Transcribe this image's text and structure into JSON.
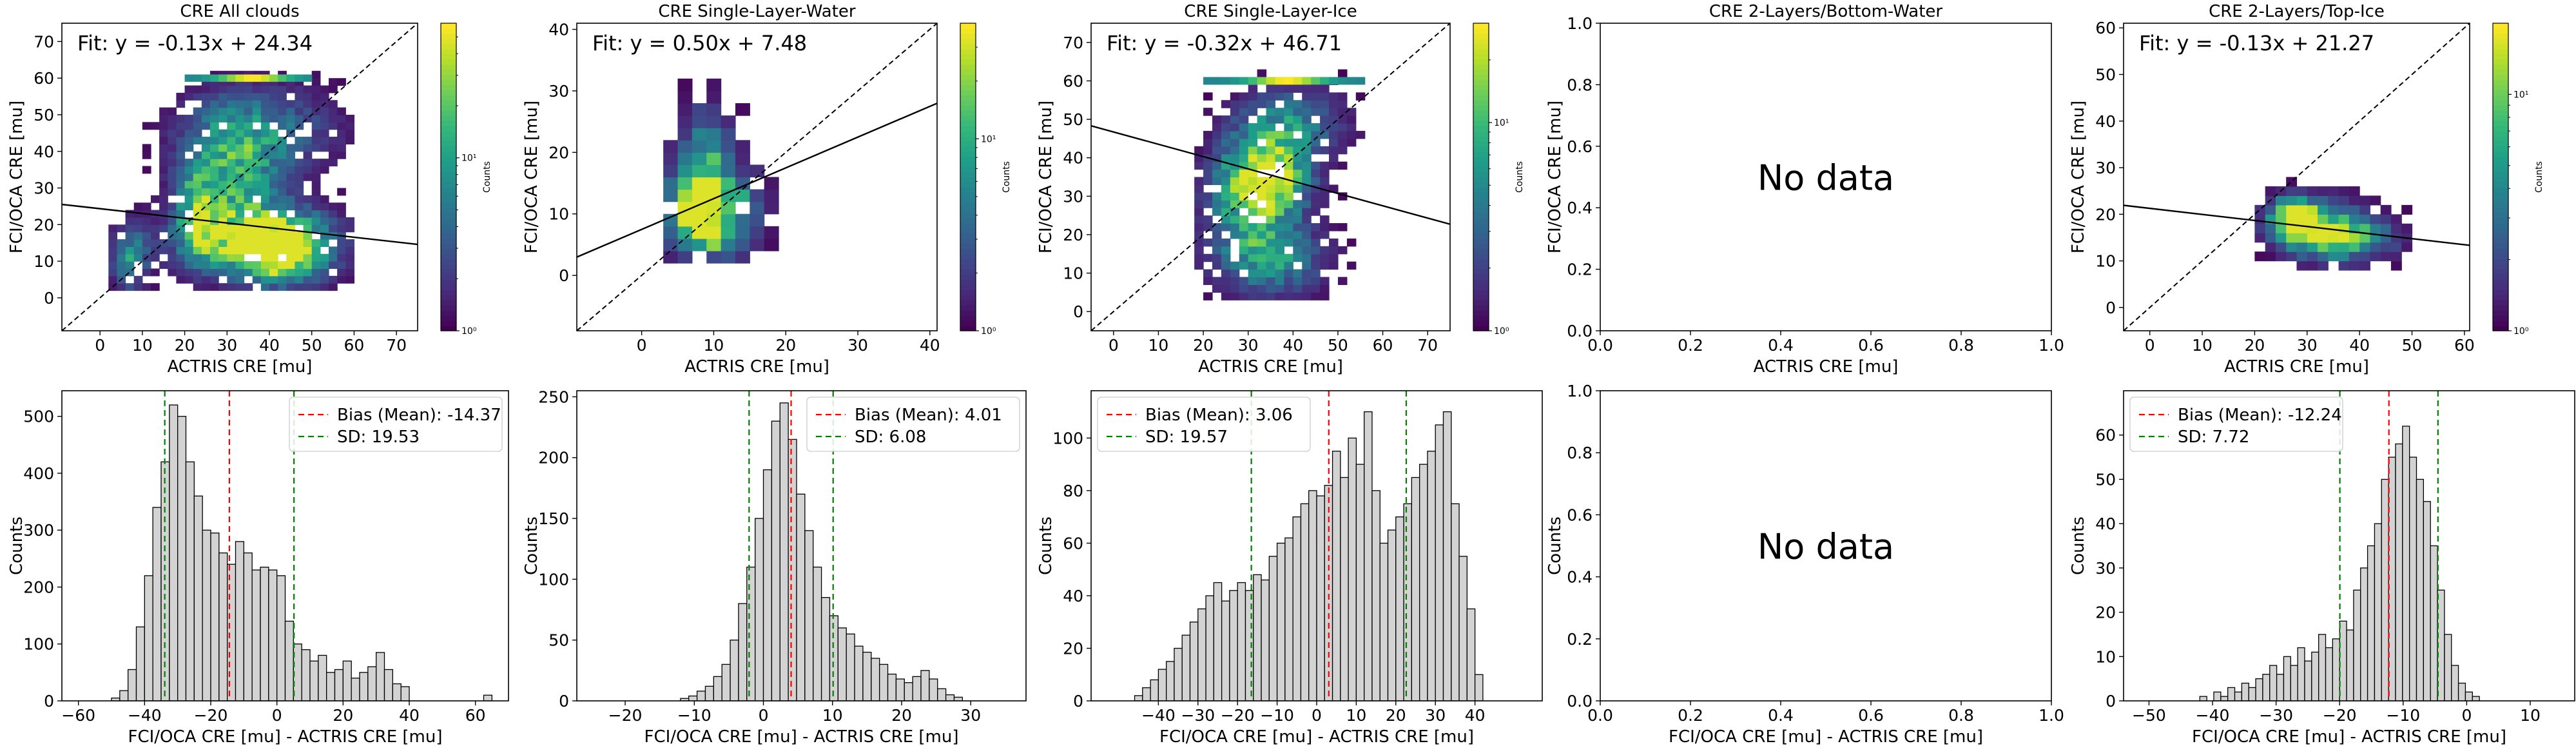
{
  "chart_data": [
    {
      "type": "heatmap",
      "title": "CRE All clouds",
      "xlabel": "ACTRIS CRE [mu]",
      "ylabel": "FCI/OCA CRE [mu]",
      "xlim": [
        -9,
        75
      ],
      "ylim": [
        -9,
        75
      ],
      "xticks": [
        0,
        10,
        20,
        30,
        40,
        50,
        60,
        70
      ],
      "yticks": [
        0,
        10,
        20,
        30,
        40,
        50,
        60,
        70
      ],
      "fit": {
        "label": "Fit: y = -0.13x + 24.34",
        "slope": -0.13,
        "intercept": 24.34
      },
      "identity_line": true,
      "colorbar": {
        "label": "Counts",
        "scale": "log",
        "range": [
          1,
          60
        ],
        "ticks": [
          "10⁰",
          "10¹"
        ]
      },
      "density": {
        "blobs": [
          [
            22,
            22,
            3,
            8,
            0.55
          ],
          [
            30,
            32,
            8,
            12,
            0.6
          ],
          [
            42,
            12,
            7,
            6,
            1.0
          ],
          [
            35,
            15,
            12,
            6,
            0.7
          ],
          [
            6,
            10,
            3,
            6,
            0.5
          ],
          [
            38,
            45,
            12,
            8,
            0.35
          ]
        ],
        "xr": [
          2,
          60
        ],
        "yr": [
          2,
          62
        ],
        "cap": 60,
        "capx": [
          20,
          50
        ],
        "seed": 11
      }
    },
    {
      "type": "heatmap",
      "title": "CRE Single-Layer-Water",
      "xlabel": "ACTRIS CRE [mu]",
      "ylabel": "FCI/OCA CRE [mu]",
      "xlim": [
        -9,
        41
      ],
      "ylim": [
        -9,
        41
      ],
      "xticks": [
        0,
        10,
        20,
        30,
        40
      ],
      "yticks": [
        0,
        10,
        20,
        30,
        40
      ],
      "fit": {
        "label": "Fit: y = 0.50x + 7.48",
        "slope": 0.5,
        "intercept": 7.48
      },
      "identity_line": true,
      "colorbar": {
        "label": "Counts",
        "scale": "log",
        "range": [
          1,
          40
        ],
        "ticks": [
          "10⁰",
          "10¹"
        ]
      },
      "density": {
        "blobs": [
          [
            6,
            10,
            2.5,
            4,
            1.0
          ],
          [
            8,
            17,
            2.5,
            6,
            0.6
          ],
          [
            10,
            6,
            3,
            3,
            0.6
          ],
          [
            12,
            12,
            3,
            3,
            0.4
          ]
        ],
        "xr": [
          3,
          20
        ],
        "yr": [
          2,
          32
        ],
        "seed": 5
      }
    },
    {
      "type": "heatmap",
      "title": "CRE Single-Layer-Ice",
      "xlabel": "ACTRIS CRE [mu]",
      "ylabel": "FCI/OCA CRE [mu]",
      "xlim": [
        -5,
        75
      ],
      "ylim": [
        -5,
        75
      ],
      "xticks": [
        0,
        10,
        20,
        30,
        40,
        50,
        60,
        70
      ],
      "yticks": [
        0,
        10,
        20,
        30,
        40,
        50,
        60,
        70
      ],
      "fit": {
        "label": "Fit: y = -0.32x + 46.71",
        "slope": -0.32,
        "intercept": 46.71
      },
      "identity_line": true,
      "colorbar": {
        "label": "Counts",
        "scale": "log",
        "range": [
          1,
          30
        ],
        "ticks": [
          "10⁰",
          "10¹"
        ]
      },
      "density": {
        "blobs": [
          [
            33,
            35,
            6,
            6,
            1.0
          ],
          [
            30,
            25,
            7,
            10,
            0.6
          ],
          [
            38,
            48,
            8,
            6,
            0.5
          ],
          [
            35,
            12,
            8,
            6,
            0.4
          ]
        ],
        "xr": [
          18,
          65
        ],
        "yr": [
          3,
          62
        ],
        "cap": 60,
        "capx": [
          20,
          55
        ],
        "seed": 23
      }
    },
    {
      "type": "heatmap",
      "title": "CRE 2-Layers/Bottom-Water",
      "xlabel": "ACTRIS CRE [mu]",
      "ylabel": "FCI/OCA CRE [mu]",
      "xlim": [
        0,
        1
      ],
      "ylim": [
        0,
        1
      ],
      "xticks": [
        "0.0",
        "0.2",
        "0.4",
        "0.6",
        "0.8",
        "1.0"
      ],
      "yticks": [
        "0.0",
        "0.2",
        "0.4",
        "0.6",
        "0.8",
        "1.0"
      ],
      "annotation": "No data"
    },
    {
      "type": "heatmap",
      "title": "CRE 2-Layers/Top-Ice",
      "xlabel": "ACTRIS CRE [mu]",
      "ylabel": "FCI/OCA CRE [mu]",
      "xlim": [
        -5,
        61
      ],
      "ylim": [
        -5,
        61
      ],
      "xticks": [
        0,
        10,
        20,
        30,
        40,
        50,
        60
      ],
      "yticks": [
        0,
        10,
        20,
        30,
        40,
        50,
        60
      ],
      "fit": {
        "label": "Fit: y = -0.13x + 21.27",
        "slope": -0.13,
        "intercept": 21.27
      },
      "identity_line": true,
      "colorbar": {
        "label": "Counts",
        "scale": "log",
        "range": [
          1,
          20
        ],
        "ticks": [
          "10⁰",
          "10¹"
        ]
      },
      "density": {
        "blobs": [
          [
            26,
            18,
            3,
            3,
            1.0
          ],
          [
            32,
            16,
            5,
            4,
            0.8
          ],
          [
            38,
            14,
            6,
            3,
            0.5
          ]
        ],
        "xr": [
          18,
          50
        ],
        "yr": [
          8,
          34
        ],
        "seed": 31
      }
    },
    {
      "type": "bar",
      "subtype": "histogram",
      "xlabel": "FCI/OCA CRE [mu] - ACTRIS CRE [mu]",
      "ylabel": "Counts",
      "xlim": [
        -65,
        70
      ],
      "ylim": [
        0,
        545
      ],
      "xticks": [
        -60,
        -40,
        -20,
        0,
        20,
        40,
        60
      ],
      "yticks": [
        0,
        100,
        200,
        300,
        400,
        500
      ],
      "bin_start": -50,
      "bin_width": 2.5,
      "values": [
        5,
        18,
        55,
        130,
        220,
        340,
        420,
        520,
        500,
        420,
        360,
        300,
        295,
        260,
        240,
        280,
        260,
        230,
        235,
        230,
        220,
        140,
        100,
        90,
        70,
        80,
        50,
        55,
        70,
        40,
        50,
        60,
        85,
        55,
        30,
        25,
        0,
        0,
        0,
        0,
        0,
        0,
        0,
        0,
        0,
        10,
        0,
        0
      ],
      "bias": {
        "label": "Bias (Mean): -14.37",
        "value": -14.37
      },
      "sd": {
        "label": "SD: 19.53",
        "value": 19.53
      },
      "sd_lines": [
        -33.9,
        5.16
      ]
    },
    {
      "type": "bar",
      "subtype": "histogram",
      "xlabel": "FCI/OCA CRE [mu] - ACTRIS CRE [mu]",
      "ylabel": "Counts",
      "xlim": [
        -27,
        38
      ],
      "ylim": [
        0,
        255
      ],
      "xticks": [
        -20,
        -10,
        0,
        10,
        20,
        30
      ],
      "yticks": [
        0,
        50,
        100,
        150,
        200,
        250
      ],
      "bin_start": -12,
      "bin_width": 1.2,
      "values": [
        2,
        4,
        8,
        12,
        20,
        30,
        50,
        80,
        110,
        150,
        190,
        230,
        245,
        215,
        170,
        140,
        110,
        85,
        70,
        60,
        55,
        45,
        40,
        35,
        30,
        22,
        18,
        15,
        20,
        25,
        18,
        10,
        5,
        3
      ],
      "bias": {
        "label": "Bias (Mean): 4.01",
        "value": 4.01
      },
      "sd": {
        "label": "SD: 6.08",
        "value": 6.08
      },
      "sd_lines": [
        -2.07,
        10.09
      ]
    },
    {
      "type": "bar",
      "subtype": "histogram",
      "xlabel": "FCI/OCA CRE [mu] - ACTRIS CRE [mu]",
      "ylabel": "Counts",
      "xlim": [
        -57,
        57
      ],
      "ylim": [
        0,
        118
      ],
      "xticks": [
        -40,
        -30,
        -20,
        -10,
        0,
        10,
        20,
        30,
        40
      ],
      "yticks": [
        0,
        20,
        40,
        60,
        80,
        100
      ],
      "bin_start": -46,
      "bin_width": 2,
      "values": [
        2,
        5,
        8,
        12,
        15,
        20,
        25,
        30,
        35,
        40,
        45,
        38,
        42,
        45,
        42,
        48,
        46,
        55,
        60,
        62,
        70,
        75,
        80,
        78,
        82,
        95,
        85,
        100,
        90,
        110,
        80,
        60,
        65,
        70,
        75,
        85,
        90,
        95,
        105,
        110,
        75,
        55,
        35,
        10
      ],
      "bias": {
        "label": "Bias (Mean): 3.06",
        "value": 3.06
      },
      "sd": {
        "label": "SD: 19.57",
        "value": 19.57
      },
      "sd_lines": [
        -16.51,
        22.63
      ]
    },
    {
      "type": "bar",
      "subtype": "histogram",
      "xlabel": "FCI/OCA CRE [mu] - ACTRIS CRE [mu]",
      "ylabel": "Counts",
      "xlim": [
        0,
        1
      ],
      "ylim": [
        0,
        1
      ],
      "xticks": [
        "0.0",
        "0.2",
        "0.4",
        "0.6",
        "0.8",
        "1.0"
      ],
      "yticks": [
        "0.0",
        "0.2",
        "0.4",
        "0.6",
        "0.8",
        "1.0"
      ],
      "annotation": "No data"
    },
    {
      "type": "bar",
      "subtype": "histogram",
      "xlabel": "FCI/OCA CRE [mu] - ACTRIS CRE [mu]",
      "ylabel": "Counts",
      "xlim": [
        -54,
        17
      ],
      "ylim": [
        0,
        70
      ],
      "xticks": [
        -50,
        -40,
        -30,
        -20,
        -10,
        0,
        10
      ],
      "yticks": [
        0,
        10,
        20,
        30,
        40,
        50,
        60
      ],
      "bin_start": -42,
      "bin_width": 1.1,
      "values": [
        1,
        0,
        2,
        1,
        3,
        2,
        4,
        3,
        5,
        6,
        8,
        6,
        10,
        8,
        12,
        9,
        11,
        15,
        12,
        14,
        18,
        16,
        25,
        30,
        35,
        40,
        50,
        55,
        58,
        62,
        55,
        50,
        45,
        35,
        25,
        15,
        8,
        4,
        2,
        1
      ],
      "bias": {
        "label": "Bias (Mean): -12.24",
        "value": -12.24
      },
      "sd": {
        "label": "SD: 7.72",
        "value": 7.72
      },
      "sd_lines": [
        -19.96,
        -4.52
      ]
    }
  ]
}
